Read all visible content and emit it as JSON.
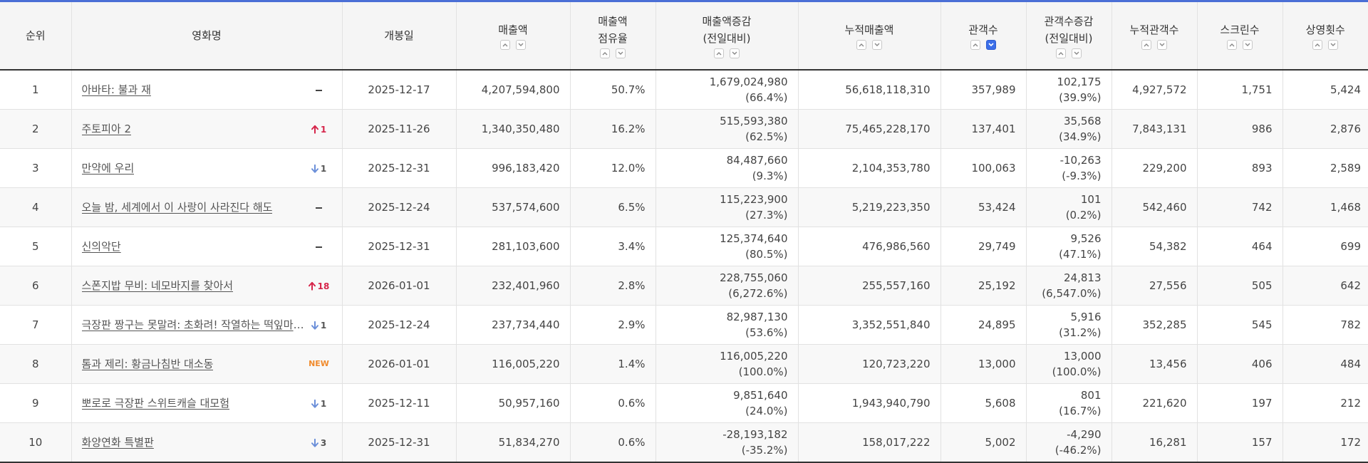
{
  "headers": {
    "rank": "순위",
    "title": "영화명",
    "open_date": "개봉일",
    "sales": "매출액",
    "share_1": "매출액",
    "share_2": "점유율",
    "sales_change_1": "매출액증감",
    "sales_change_2": "(전일대비)",
    "cum_sales": "누적매출액",
    "audience": "관객수",
    "audience_change_1": "관객수증감",
    "audience_change_2": "(전일대비)",
    "cum_audience": "누적관객수",
    "screens": "스크린수",
    "showings": "상영횟수"
  },
  "sort": {
    "active_column": "audience",
    "active_direction": "desc"
  },
  "colors": {
    "accent": "#3b6ee8",
    "rank_up": "#d6254a",
    "rank_down": "#6b8fd9",
    "new": "#f08a2c"
  },
  "rows": [
    {
      "rank": "1",
      "title": "아바타: 불과 재",
      "change_type": "same",
      "change_value": "",
      "open_date": "2025-12-17",
      "sales": "4,207,594,800",
      "share": "50.7%",
      "sales_change": "1,679,024,980",
      "sales_change_pct": "(66.4%)",
      "cum_sales": "56,618,118,310",
      "audience": "357,989",
      "audience_change": "102,175",
      "audience_change_pct": "(39.9%)",
      "cum_audience": "4,927,572",
      "screens": "1,751",
      "showings": "5,424"
    },
    {
      "rank": "2",
      "title": "주토피아 2",
      "change_type": "up",
      "change_value": "1",
      "open_date": "2025-11-26",
      "sales": "1,340,350,480",
      "share": "16.2%",
      "sales_change": "515,593,380",
      "sales_change_pct": "(62.5%)",
      "cum_sales": "75,465,228,170",
      "audience": "137,401",
      "audience_change": "35,568",
      "audience_change_pct": "(34.9%)",
      "cum_audience": "7,843,131",
      "screens": "986",
      "showings": "2,876"
    },
    {
      "rank": "3",
      "title": "만약에 우리",
      "change_type": "down",
      "change_value": "1",
      "open_date": "2025-12-31",
      "sales": "996,183,420",
      "share": "12.0%",
      "sales_change": "84,487,660",
      "sales_change_pct": "(9.3%)",
      "cum_sales": "2,104,353,780",
      "audience": "100,063",
      "audience_change": "-10,263",
      "audience_change_pct": "(-9.3%)",
      "cum_audience": "229,200",
      "screens": "893",
      "showings": "2,589"
    },
    {
      "rank": "4",
      "title": "오늘 밤, 세계에서 이 사랑이 사라진다 해도",
      "change_type": "same",
      "change_value": "",
      "open_date": "2025-12-24",
      "sales": "537,574,600",
      "share": "6.5%",
      "sales_change": "115,223,900",
      "sales_change_pct": "(27.3%)",
      "cum_sales": "5,219,223,350",
      "audience": "53,424",
      "audience_change": "101",
      "audience_change_pct": "(0.2%)",
      "cum_audience": "542,460",
      "screens": "742",
      "showings": "1,468"
    },
    {
      "rank": "5",
      "title": "신의악단",
      "change_type": "same",
      "change_value": "",
      "open_date": "2025-12-31",
      "sales": "281,103,600",
      "share": "3.4%",
      "sales_change": "125,374,640",
      "sales_change_pct": "(80.5%)",
      "cum_sales": "476,986,560",
      "audience": "29,749",
      "audience_change": "9,526",
      "audience_change_pct": "(47.1%)",
      "cum_audience": "54,382",
      "screens": "464",
      "showings": "699"
    },
    {
      "rank": "6",
      "title": "스폰지밥 무비: 네모바지를 찾아서",
      "change_type": "up",
      "change_value": "18",
      "open_date": "2026-01-01",
      "sales": "232,401,960",
      "share": "2.8%",
      "sales_change": "228,755,060",
      "sales_change_pct": "(6,272.6%)",
      "cum_sales": "255,557,160",
      "audience": "25,192",
      "audience_change": "24,813",
      "audience_change_pct": "(6,547.0%)",
      "cum_audience": "27,556",
      "screens": "505",
      "showings": "642"
    },
    {
      "rank": "7",
      "title": "극장판 짱구는 못말려: 초화려! 작열하는 떡잎마을 댄서즈",
      "change_type": "down",
      "change_value": "1",
      "open_date": "2025-12-24",
      "sales": "237,734,440",
      "share": "2.9%",
      "sales_change": "82,987,130",
      "sales_change_pct": "(53.6%)",
      "cum_sales": "3,352,551,840",
      "audience": "24,895",
      "audience_change": "5,916",
      "audience_change_pct": "(31.2%)",
      "cum_audience": "352,285",
      "screens": "545",
      "showings": "782"
    },
    {
      "rank": "8",
      "title": "톰과 제리: 황금나침반 대소동",
      "change_type": "new",
      "change_value": "NEW",
      "open_date": "2026-01-01",
      "sales": "116,005,220",
      "share": "1.4%",
      "sales_change": "116,005,220",
      "sales_change_pct": "(100.0%)",
      "cum_sales": "120,723,220",
      "audience": "13,000",
      "audience_change": "13,000",
      "audience_change_pct": "(100.0%)",
      "cum_audience": "13,456",
      "screens": "406",
      "showings": "484"
    },
    {
      "rank": "9",
      "title": "뽀로로 극장판 스위트캐슬 대모험",
      "change_type": "down",
      "change_value": "1",
      "open_date": "2025-12-11",
      "sales": "50,957,160",
      "share": "0.6%",
      "sales_change": "9,851,640",
      "sales_change_pct": "(24.0%)",
      "cum_sales": "1,943,940,790",
      "audience": "5,608",
      "audience_change": "801",
      "audience_change_pct": "(16.7%)",
      "cum_audience": "221,620",
      "screens": "197",
      "showings": "212"
    },
    {
      "rank": "10",
      "title": "화양연화 특별판",
      "change_type": "down",
      "change_value": "3",
      "open_date": "2025-12-31",
      "sales": "51,834,270",
      "share": "0.6%",
      "sales_change": "-28,193,182",
      "sales_change_pct": "(-35.2%)",
      "cum_sales": "158,017,222",
      "audience": "5,002",
      "audience_change": "-4,290",
      "audience_change_pct": "(-46.2%)",
      "cum_audience": "16,281",
      "screens": "157",
      "showings": "172"
    }
  ]
}
